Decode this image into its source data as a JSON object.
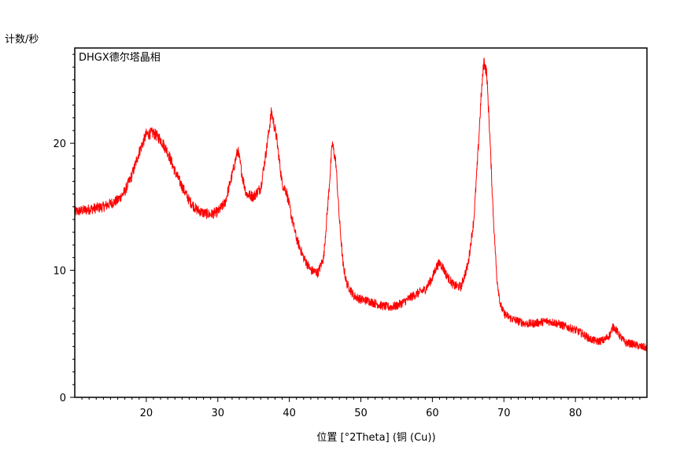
{
  "chart_data": {
    "type": "line",
    "title": "",
    "sample_label": "DHGX德尔塔晶相",
    "ylabel": "计数/秒",
    "xlabel": "位置 [°2Theta] (铜 (Cu))",
    "xlim": [
      10,
      90
    ],
    "ylim": [
      0,
      27.5
    ],
    "x_ticks": [
      20,
      30,
      40,
      50,
      60,
      70,
      80
    ],
    "y_ticks": [
      0,
      10,
      20
    ],
    "grid": false,
    "legend": "none",
    "series": [
      {
        "color": "#ff0000",
        "x": [
          10,
          12,
          14,
          16,
          17,
          18,
          19,
          20,
          21,
          22,
          23,
          24,
          25,
          26,
          27,
          28,
          29,
          30,
          31,
          32,
          32.8,
          33.5,
          34,
          35,
          36,
          36.8,
          37.5,
          38.2,
          39,
          39.6,
          40.2,
          41,
          42,
          43,
          44,
          44.8,
          45.5,
          46,
          46.5,
          47,
          47.5,
          48,
          49,
          50,
          51,
          52,
          53,
          54,
          55,
          56,
          57,
          58,
          59,
          60,
          60.5,
          61,
          61.5,
          62,
          63,
          64,
          65,
          65.8,
          66.3,
          66.8,
          67.2,
          67.6,
          68,
          68.5,
          69,
          69.5,
          70,
          71,
          72,
          73,
          74,
          75,
          76,
          77,
          78,
          79,
          80,
          81,
          82,
          83,
          84,
          84.8,
          85.3,
          85.8,
          86.5,
          87,
          88,
          89,
          90
        ],
        "y": [
          14.6,
          14.8,
          15.0,
          15.5,
          16.2,
          17.5,
          19.3,
          20.7,
          20.8,
          20.3,
          19.3,
          17.8,
          16.6,
          15.5,
          14.8,
          14.5,
          14.4,
          14.6,
          15.3,
          17.5,
          19.5,
          17.2,
          16.0,
          15.8,
          16.5,
          19.5,
          22.5,
          20.5,
          16.8,
          16.2,
          14.5,
          12.5,
          11.0,
          10.0,
          9.8,
          11.0,
          16.0,
          20.0,
          18.5,
          14.0,
          10.5,
          9.0,
          8.0,
          7.7,
          7.6,
          7.4,
          7.2,
          7.1,
          7.2,
          7.5,
          7.9,
          8.2,
          8.5,
          9.4,
          10.2,
          10.6,
          10.2,
          9.6,
          8.8,
          8.7,
          10.5,
          14.0,
          18.5,
          23.5,
          26.5,
          25.5,
          21.0,
          14.5,
          9.5,
          7.3,
          6.6,
          6.2,
          6.0,
          5.8,
          5.8,
          5.9,
          6.0,
          5.9,
          5.7,
          5.5,
          5.3,
          5.0,
          4.6,
          4.4,
          4.5,
          4.9,
          5.6,
          5.2,
          4.6,
          4.3,
          4.2,
          4.0,
          3.9
        ]
      }
    ]
  }
}
